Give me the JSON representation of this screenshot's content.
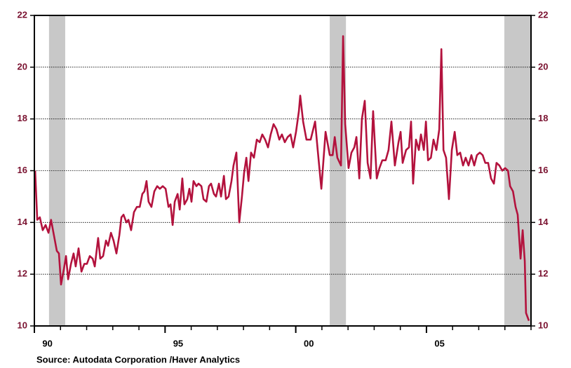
{
  "chart_data": {
    "type": "line",
    "source": "Source:  Autodata Corporation /Haver Analytics",
    "xlim": [
      1990,
      2009
    ],
    "xticks": [
      {
        "value": 1990,
        "label": "90"
      },
      {
        "value": 1995,
        "label": "95"
      },
      {
        "value": 2000,
        "label": "00"
      },
      {
        "value": 2005,
        "label": "05"
      }
    ],
    "ylim": [
      10,
      22
    ],
    "yticks": [
      10,
      12,
      14,
      16,
      18,
      20,
      22
    ],
    "y2lim": [
      10,
      22
    ],
    "y2ticks": [
      10,
      12,
      14,
      16,
      18,
      20,
      22
    ],
    "grid": true,
    "shaded_periods": [
      [
        1990.56,
        1991.18
      ],
      [
        2001.3,
        2001.92
      ],
      [
        2007.98,
        2009
      ]
    ],
    "shade_color": "#c8c8c8",
    "x": [
      1990.03,
      1990.11,
      1990.21,
      1990.32,
      1990.43,
      1990.54,
      1990.64,
      1990.75,
      1990.86,
      1990.94,
      1991.02,
      1991.13,
      1991.21,
      1991.29,
      1991.4,
      1991.5,
      1991.58,
      1991.69,
      1991.8,
      1991.91,
      1992.01,
      1992.12,
      1992.23,
      1992.31,
      1992.44,
      1992.52,
      1992.63,
      1992.74,
      1992.82,
      1992.93,
      1993.03,
      1993.14,
      1993.25,
      1993.33,
      1993.41,
      1993.52,
      1993.6,
      1993.7,
      1993.81,
      1993.92,
      1994.03,
      1994.13,
      1994.21,
      1994.29,
      1994.37,
      1994.48,
      1994.59,
      1994.7,
      1994.8,
      1994.91,
      1995.02,
      1995.13,
      1995.21,
      1995.29,
      1995.37,
      1995.48,
      1995.56,
      1995.66,
      1995.74,
      1995.85,
      1995.93,
      1996.01,
      1996.09,
      1996.2,
      1996.28,
      1996.39,
      1996.47,
      1996.58,
      1996.68,
      1996.76,
      1996.87,
      1996.95,
      1997.06,
      1997.14,
      1997.25,
      1997.33,
      1997.43,
      1997.54,
      1997.62,
      1997.73,
      1997.84,
      1997.94,
      1998.02,
      1998.11,
      1998.19,
      1998.29,
      1998.4,
      1998.51,
      1998.62,
      1998.72,
      1998.83,
      1998.94,
      1999.04,
      1999.15,
      1999.26,
      1999.37,
      1999.47,
      1999.58,
      1999.69,
      1999.8,
      1999.9,
      2000.01,
      2000.12,
      2000.17,
      2000.28,
      2000.41,
      2000.57,
      2000.74,
      2000.84,
      2000.98,
      2001.14,
      2001.3,
      2001.41,
      2001.49,
      2001.59,
      2001.73,
      2001.81,
      2001.89,
      2002.02,
      2002.13,
      2002.24,
      2002.32,
      2002.43,
      2002.53,
      2002.64,
      2002.75,
      2002.86,
      2002.96,
      2003.1,
      2003.2,
      2003.31,
      2003.44,
      2003.55,
      2003.66,
      2003.79,
      2003.93,
      2004.01,
      2004.09,
      2004.22,
      2004.33,
      2004.41,
      2004.49,
      2004.6,
      2004.71,
      2004.79,
      2004.9,
      2004.98,
      2005.06,
      2005.17,
      2005.27,
      2005.38,
      2005.49,
      2005.57,
      2005.65,
      2005.75,
      2005.86,
      2005.97,
      2006.08,
      2006.18,
      2006.29,
      2006.4,
      2006.5,
      2006.61,
      2006.72,
      2006.83,
      2006.93,
      2007.04,
      2007.15,
      2007.25,
      2007.36,
      2007.47,
      2007.58,
      2007.68,
      2007.79,
      2007.9,
      2008.01,
      2008.12,
      2008.2,
      2008.31,
      2008.41,
      2008.49,
      2008.6,
      2008.68,
      2008.76,
      2008.81,
      2008.92
    ],
    "series": [
      {
        "color": "#b3123d",
        "values": [
          16.0,
          14.1,
          14.2,
          13.7,
          13.9,
          13.6,
          14.1,
          13.5,
          12.9,
          12.8,
          11.6,
          12.2,
          12.7,
          11.8,
          12.4,
          12.8,
          12.3,
          13.0,
          12.1,
          12.4,
          12.4,
          12.7,
          12.6,
          12.3,
          13.4,
          12.6,
          12.7,
          13.3,
          13.1,
          13.6,
          13.3,
          12.8,
          13.5,
          14.2,
          14.3,
          14.0,
          14.1,
          13.7,
          14.4,
          14.6,
          14.6,
          15.1,
          15.2,
          15.6,
          14.8,
          14.6,
          15.2,
          15.4,
          15.3,
          15.4,
          15.3,
          14.6,
          14.7,
          13.9,
          14.8,
          15.1,
          14.5,
          15.7,
          14.7,
          14.9,
          15.3,
          14.8,
          15.6,
          15.4,
          15.5,
          15.4,
          14.9,
          14.8,
          15.4,
          15.5,
          15.1,
          15.0,
          15.5,
          15.0,
          15.8,
          14.9,
          15.0,
          15.6,
          16.2,
          16.7,
          14.0,
          15.0,
          15.9,
          16.5,
          15.6,
          16.7,
          16.5,
          17.2,
          17.1,
          17.4,
          17.2,
          16.9,
          17.4,
          17.8,
          17.6,
          17.2,
          17.4,
          17.1,
          17.3,
          17.4,
          16.9,
          17.5,
          18.3,
          18.9,
          17.9,
          17.2,
          17.2,
          17.9,
          16.8,
          15.3,
          17.5,
          16.6,
          16.6,
          17.3,
          16.5,
          16.2,
          21.2,
          17.8,
          16.1,
          16.7,
          16.9,
          17.3,
          15.7,
          18.0,
          18.7,
          16.3,
          15.7,
          18.3,
          15.7,
          16.1,
          16.4,
          16.4,
          16.8,
          17.9,
          16.2,
          17.1,
          17.5,
          16.3,
          16.8,
          16.9,
          17.9,
          15.5,
          17.2,
          16.8,
          17.4,
          16.8,
          17.9,
          16.4,
          16.5,
          17.2,
          16.8,
          17.6,
          20.7,
          16.8,
          16.5,
          14.9,
          16.8,
          17.5,
          16.6,
          16.7,
          16.2,
          16.5,
          16.2,
          16.6,
          16.2,
          16.6,
          16.7,
          16.6,
          16.3,
          16.3,
          15.7,
          15.5,
          16.3,
          16.2,
          16.0,
          16.1,
          16.0,
          15.4,
          15.2,
          14.6,
          14.3,
          12.6,
          13.7,
          12.5,
          10.5,
          10.2
        ]
      }
    ]
  }
}
